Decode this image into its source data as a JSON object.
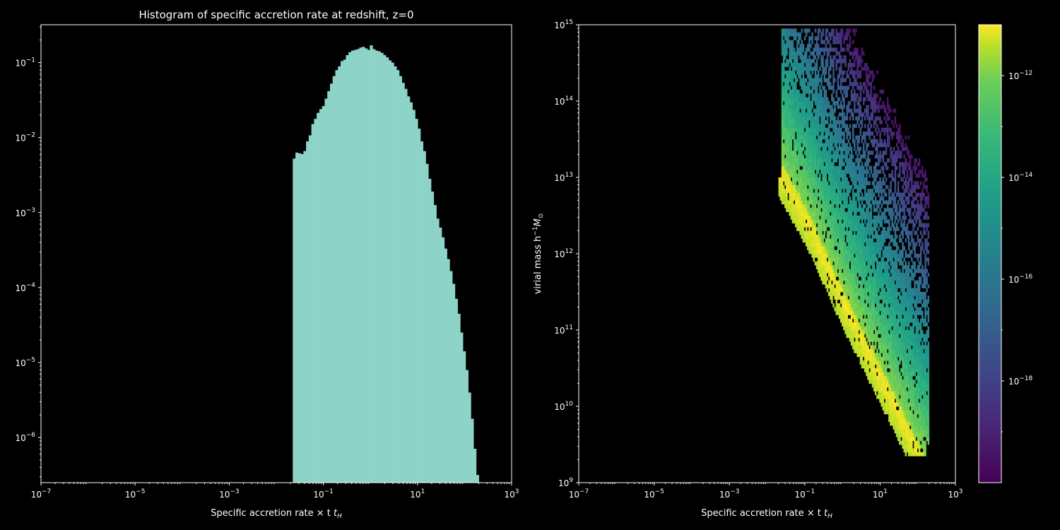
{
  "chart_data": [
    {
      "type": "bar",
      "title": "Histogram of specific accretion rate at redshift, z=0",
      "xlabel": "Specific accretion rate × t",
      "xlabel_sub": "H",
      "ylabel": "",
      "x_scale": "log",
      "y_scale": "log",
      "xlim": [
        1e-07,
        1000.0
      ],
      "ylim": [
        2.5e-07,
        0.32
      ],
      "x_tick_exponents": [
        -7,
        -5,
        -3,
        -1,
        1,
        3
      ],
      "y_tick_exponents": [
        -6,
        -5,
        -4,
        -3,
        -2,
        -1
      ],
      "bar_color": "#8dd3c7",
      "bins": {
        "log_x_start": -1.65,
        "log_x_end": 2.3,
        "counts_log10": [
          -2.28,
          -2.2,
          -2.21,
          -2.22,
          -2.18,
          -2.05,
          -1.97,
          -1.82,
          -1.75,
          -1.67,
          -1.62,
          -1.58,
          -1.48,
          -1.38,
          -1.28,
          -1.18,
          -1.1,
          -1.05,
          -0.98,
          -0.96,
          -0.9,
          -0.86,
          -0.84,
          -0.83,
          -0.82,
          -0.8,
          -0.79,
          -0.81,
          -0.83,
          -0.77,
          -0.82,
          -0.84,
          -0.85,
          -0.87,
          -0.9,
          -0.93,
          -0.97,
          -1.0,
          -1.05,
          -1.1,
          -1.18,
          -1.27,
          -1.35,
          -1.45,
          -1.53,
          -1.63,
          -1.75,
          -1.88,
          -2.05,
          -2.18,
          -2.35,
          -2.55,
          -2.72,
          -2.9,
          -3.08,
          -3.2,
          -3.33,
          -3.48,
          -3.62,
          -3.78,
          -3.95,
          -4.15,
          -4.35,
          -4.6,
          -4.85,
          -5.1,
          -5.4,
          -5.75,
          -6.15,
          -6.5
        ]
      }
    },
    {
      "type": "heatmap",
      "title": "",
      "xlabel": "Specific accretion rate × t",
      "xlabel_sub": "H",
      "ylabel_prefix": "virial mass h",
      "ylabel_sup": "−1",
      "ylabel_suffix": "M",
      "ylabel_sub": "⊙",
      "x_scale": "log",
      "y_scale": "log",
      "xlim": [
        1e-07,
        1000.0
      ],
      "ylim": [
        1000000000.0,
        1000000000000000.0
      ],
      "x_tick_exponents": [
        -7,
        -5,
        -3,
        -1,
        1,
        3
      ],
      "y_tick_exponents": [
        9,
        10,
        11,
        12,
        13,
        14,
        15
      ],
      "colormap": "viridis",
      "colorbar": {
        "scale": "log",
        "range": [
          1e-20,
          1e-11
        ],
        "tick_exponents": [
          -18,
          -16,
          -14,
          -12
        ]
      },
      "ridge": {
        "points": [
          [
            -1.62,
            13.0
          ],
          [
            -0.9,
            12.35
          ],
          [
            0.0,
            11.35
          ],
          [
            0.7,
            10.65
          ],
          [
            1.3,
            10.05
          ]
        ],
        "peak_log_value": -11.2
      },
      "band": {
        "x_min_log": -1.7,
        "x_max_log": 2.3,
        "mass_min_log": 9.35,
        "mass_max_log": 14.95
      }
    }
  ]
}
